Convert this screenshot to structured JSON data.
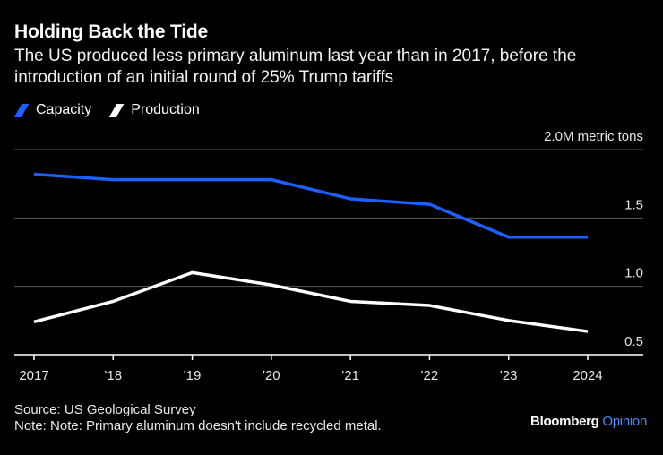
{
  "header": {
    "title": "Holding Back the Tide",
    "subtitle": "The US produced less primary aluminum last year than in 2017, before the introduction of an initial round of 25% Trump tariffs"
  },
  "legend": {
    "capacity": "Capacity",
    "production": "Production"
  },
  "colors": {
    "capacity": "#1f5fff",
    "production": "#ffffff",
    "grid": "#5a5a5a",
    "background": "#000000"
  },
  "chart_data": {
    "type": "line",
    "title": "Holding Back the Tide",
    "xlabel": "",
    "ylabel": "",
    "categories": [
      "2017",
      "'18",
      "'19",
      "'20",
      "'21",
      "'22",
      "'23",
      "2024"
    ],
    "ylim": [
      0.5,
      2.0
    ],
    "yticks": [
      {
        "value": 2.0,
        "label": "2.0M metric tons"
      },
      {
        "value": 1.5,
        "label": "1.5"
      },
      {
        "value": 1.0,
        "label": "1.0"
      },
      {
        "value": 0.5,
        "label": "0.5"
      }
    ],
    "series": [
      {
        "name": "Capacity",
        "values": [
          1.82,
          1.78,
          1.78,
          1.78,
          1.64,
          1.6,
          1.36,
          1.36
        ]
      },
      {
        "name": "Production",
        "values": [
          0.74,
          0.89,
          1.1,
          1.01,
          0.89,
          0.86,
          0.75,
          0.67
        ]
      }
    ]
  },
  "footer": {
    "source": "Source: US Geological Survey",
    "note": "Note: Note: Primary aluminum doesn't include recycled metal."
  },
  "brand": {
    "name": "Bloomberg",
    "accent": "Opinion"
  }
}
